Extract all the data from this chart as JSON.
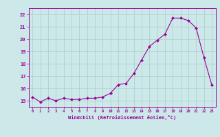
{
  "x": [
    0,
    1,
    2,
    3,
    4,
    5,
    6,
    7,
    8,
    9,
    10,
    11,
    12,
    13,
    14,
    15,
    16,
    17,
    18,
    19,
    20,
    21,
    22,
    23
  ],
  "y": [
    15.3,
    14.9,
    15.2,
    15.0,
    15.2,
    15.1,
    15.1,
    15.2,
    15.2,
    15.3,
    15.6,
    16.3,
    16.4,
    17.2,
    18.3,
    19.4,
    19.9,
    20.4,
    21.7,
    21.7,
    21.5,
    20.9,
    18.5,
    16.3
  ],
  "xticks": [
    0,
    1,
    2,
    3,
    4,
    5,
    6,
    7,
    8,
    9,
    10,
    11,
    12,
    13,
    14,
    15,
    16,
    17,
    18,
    19,
    20,
    21,
    22,
    23
  ],
  "yticks": [
    15,
    16,
    17,
    18,
    19,
    20,
    21,
    22
  ],
  "ylim": [
    14.5,
    22.5
  ],
  "xlim": [
    -0.5,
    23.5
  ],
  "xlabel": "Windchill (Refroidissement éolien,°C)",
  "line_color": "#990099",
  "marker_color": "#990099",
  "bg_color": "#cce8e8",
  "grid_color": "#aacccc",
  "axis_color": "#990099",
  "tick_color": "#990099",
  "dpi": 100
}
